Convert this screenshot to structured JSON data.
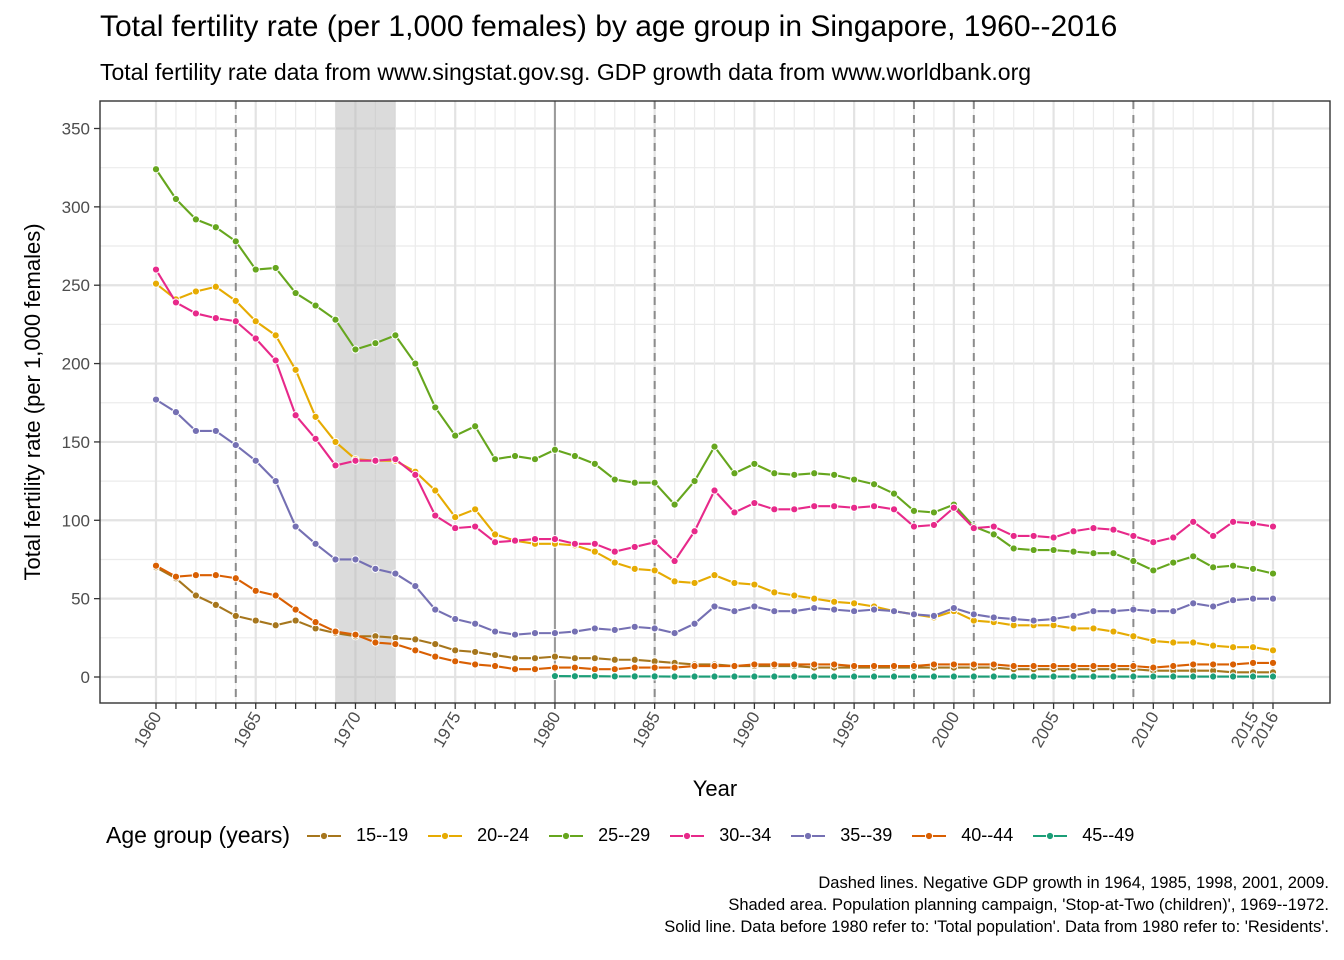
{
  "title": "Total fertility rate (per 1,000 females) by age group in Singapore, 1960--2016",
  "subtitle": "Total fertility rate data from www.singstat.gov.sg. GDP growth data from www.worldbank.org",
  "legend_title": "Age group (years)",
  "captions": [
    "Dashed lines. Negative GDP growth in 1964, 1985, 1998, 2001, 2009.",
    "Shaded area. Population planning campaign, 'Stop-at-Two (children)', 1969--1972.",
    "Solid line. Data before 1980 refer to: 'Total population'. Data from 1980 refer to: 'Residents'."
  ],
  "chart_data": {
    "type": "line",
    "xlabel": "Year",
    "ylabel": "Total fertility rate (per 1,000 females)",
    "xlim": [
      1960,
      2016
    ],
    "ylim": [
      0,
      350
    ],
    "x_ticks": [
      1960,
      1965,
      1970,
      1975,
      1980,
      1985,
      1990,
      1995,
      2000,
      2005,
      2010,
      2015,
      2016
    ],
    "x_tick_labels": [
      "1960",
      "1965",
      "1970",
      "1975",
      "1980",
      "1985",
      "1990",
      "1995",
      "2000",
      "2005",
      "2010",
      "2015",
      "2016"
    ],
    "y_ticks": [
      0,
      50,
      100,
      150,
      200,
      250,
      300,
      350
    ],
    "y_tick_labels": [
      "0",
      "50",
      "100",
      "150",
      "200",
      "250",
      "300",
      "350"
    ],
    "grid": true,
    "legend_position": "bottom",
    "dashed_vlines": [
      1964,
      1985,
      1998,
      2001,
      2009
    ],
    "solid_vline": 1980,
    "shaded_region": [
      1969,
      1972
    ],
    "series": [
      {
        "name": "15--19",
        "color": "#a6761d",
        "x_start": 1960,
        "values": [
          70,
          63,
          52,
          46,
          39,
          36,
          33,
          36,
          31,
          28,
          26,
          26,
          25,
          24,
          21,
          17,
          16,
          14,
          12,
          12,
          13,
          12,
          12,
          11,
          11,
          10,
          9,
          8,
          8,
          7,
          7,
          7,
          7,
          6,
          6,
          6,
          6,
          6,
          6,
          6,
          6,
          6,
          6,
          5,
          5,
          5,
          5,
          5,
          5,
          5,
          4,
          4,
          4,
          4,
          3,
          3,
          3
        ]
      },
      {
        "name": "20--24",
        "color": "#e6ab02",
        "x_start": 1960,
        "values": [
          251,
          241,
          246,
          249,
          240,
          227,
          218,
          196,
          166,
          150,
          139,
          138,
          138,
          131,
          119,
          102,
          107,
          91,
          87,
          85,
          85,
          84,
          80,
          73,
          69,
          68,
          61,
          60,
          65,
          60,
          59,
          54,
          52,
          50,
          48,
          47,
          45,
          42,
          40,
          38,
          42,
          36,
          35,
          33,
          33,
          33,
          31,
          31,
          29,
          26,
          23,
          22,
          22,
          20,
          19,
          19,
          17
        ]
      },
      {
        "name": "25--29",
        "color": "#66a61e",
        "x_start": 1960,
        "values": [
          324,
          305,
          292,
          287,
          278,
          260,
          261,
          245,
          237,
          228,
          209,
          213,
          218,
          200,
          172,
          154,
          160,
          139,
          141,
          139,
          145,
          141,
          136,
          126,
          124,
          124,
          110,
          125,
          147,
          130,
          136,
          130,
          129,
          130,
          129,
          126,
          123,
          117,
          106,
          105,
          110,
          96,
          91,
          82,
          81,
          81,
          80,
          79,
          79,
          74,
          68,
          73,
          77,
          70,
          71,
          69,
          66
        ]
      },
      {
        "name": "30--34",
        "color": "#e7298a",
        "x_start": 1960,
        "values": [
          260,
          239,
          232,
          229,
          227,
          216,
          202,
          167,
          152,
          135,
          138,
          138,
          139,
          129,
          103,
          95,
          96,
          86,
          87,
          88,
          88,
          85,
          85,
          80,
          83,
          86,
          74,
          93,
          119,
          105,
          111,
          107,
          107,
          109,
          109,
          108,
          109,
          107,
          96,
          97,
          108,
          95,
          96,
          90,
          90,
          89,
          93,
          95,
          94,
          90,
          86,
          89,
          99,
          90,
          99,
          98,
          96
        ]
      },
      {
        "name": "35--39",
        "color": "#7570b3",
        "x_start": 1960,
        "values": [
          177,
          169,
          157,
          157,
          148,
          138,
          125,
          96,
          85,
          75,
          75,
          69,
          66,
          58,
          43,
          37,
          34,
          29,
          27,
          28,
          28,
          29,
          31,
          30,
          32,
          31,
          28,
          34,
          45,
          42,
          45,
          42,
          42,
          44,
          43,
          42,
          43,
          42,
          40,
          39,
          44,
          40,
          38,
          37,
          36,
          37,
          39,
          42,
          42,
          43,
          42,
          42,
          47,
          45,
          49,
          50,
          50
        ]
      },
      {
        "name": "40--44",
        "color": "#d95f02",
        "x_start": 1960,
        "values": [
          71,
          64,
          65,
          65,
          63,
          55,
          52,
          43,
          35,
          29,
          27,
          22,
          21,
          17,
          13,
          10,
          8,
          7,
          5,
          5,
          6,
          6,
          5,
          5,
          6,
          6,
          6,
          7,
          7,
          7,
          8,
          8,
          8,
          8,
          8,
          7,
          7,
          7,
          7,
          8,
          8,
          8,
          8,
          7,
          7,
          7,
          7,
          7,
          7,
          7,
          6,
          7,
          8,
          8,
          8,
          9,
          9
        ]
      },
      {
        "name": "45--49",
        "color": "#1b9e77",
        "x_start": 1980,
        "values": [
          0.6,
          0.5,
          0.5,
          0.4,
          0.4,
          0.4,
          0.3,
          0.3,
          0.3,
          0.3,
          0.3,
          0.3,
          0.3,
          0.3,
          0.3,
          0.3,
          0.3,
          0.3,
          0.3,
          0.3,
          0.3,
          0.3,
          0.3,
          0.3,
          0.3,
          0.3,
          0.3,
          0.3,
          0.3,
          0.3,
          0.3,
          0.3,
          0.3,
          0.3,
          0.3,
          0.3,
          0.3
        ]
      }
    ]
  }
}
